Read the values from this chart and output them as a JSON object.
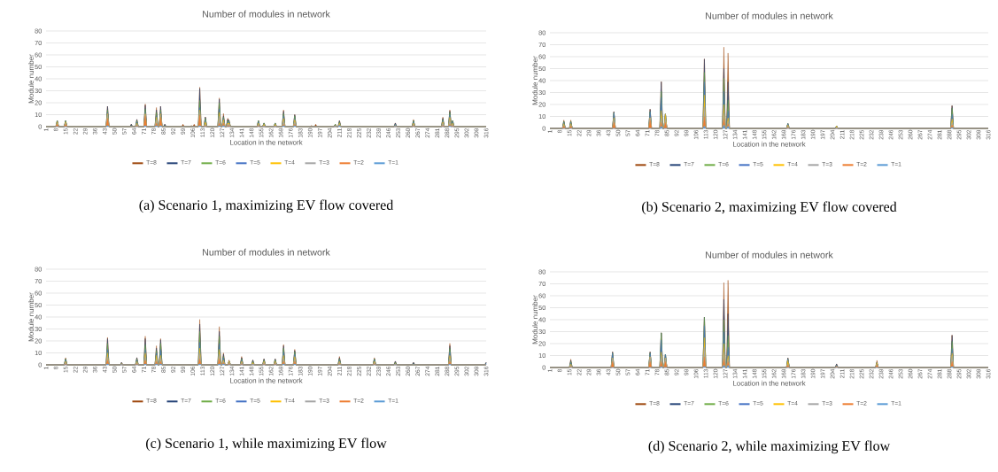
{
  "chart_data": [
    {
      "type": "area",
      "stacked": true,
      "title": "Number of modules in network",
      "xlabel": "Location in the network",
      "ylabel": "Module number",
      "xlim": [
        1,
        316
      ],
      "ylim": [
        0,
        80
      ],
      "xticks": [
        1,
        8,
        15,
        22,
        29,
        36,
        43,
        50,
        57,
        64,
        71,
        78,
        85,
        92,
        99,
        106,
        113,
        120,
        127,
        134,
        141,
        148,
        155,
        162,
        169,
        176,
        183,
        190,
        197,
        204,
        211,
        218,
        225,
        232,
        239,
        246,
        253,
        260,
        267,
        274,
        281,
        288,
        295,
        302,
        309,
        316
      ],
      "yticks": [
        0,
        10,
        20,
        30,
        40,
        50,
        60,
        70,
        80
      ],
      "grid": "y",
      "legend": "bottom",
      "annotations": [
        "(a) Scenario 1, maximizing EV flow covered"
      ],
      "x": [
        1,
        8,
        9,
        10,
        14,
        15,
        16,
        44,
        45,
        46,
        61,
        62,
        63,
        65,
        66,
        67,
        71,
        72,
        73,
        79,
        80,
        81,
        82,
        83,
        84,
        85,
        86,
        87,
        98,
        99,
        100,
        104,
        105,
        106,
        107,
        108,
        110,
        111,
        112,
        114,
        115,
        116,
        124,
        125,
        126,
        127,
        128,
        129,
        130,
        131,
        132,
        133,
        152,
        153,
        154,
        156,
        157,
        158,
        164,
        165,
        166,
        170,
        171,
        172,
        178,
        179,
        180,
        190,
        191,
        192,
        193,
        194,
        195,
        207,
        208,
        209,
        210,
        211,
        212,
        250,
        251,
        252,
        263,
        264,
        265,
        284,
        285,
        286,
        289,
        290,
        291,
        292,
        293,
        316
      ],
      "series": [
        {
          "name": "T=1",
          "color": "#5b9bd5",
          "values": [
            0,
            0,
            0,
            0,
            0,
            0,
            0,
            0,
            1,
            0,
            0,
            0,
            0,
            0,
            0,
            0,
            0,
            1,
            0,
            0,
            1,
            0,
            0,
            1,
            0,
            0,
            0,
            0,
            0,
            0,
            0,
            0,
            0,
            0,
            0,
            0,
            0,
            1,
            0,
            0,
            0,
            0,
            0,
            1,
            0,
            0,
            1,
            0,
            0,
            0,
            0,
            0,
            0,
            0,
            0,
            0,
            0,
            0,
            0,
            0,
            0,
            0,
            1,
            0,
            0,
            1,
            0,
            0,
            0,
            0,
            0,
            0,
            0,
            0,
            0,
            0,
            0,
            1,
            0,
            0,
            0,
            0,
            0,
            0,
            0,
            0,
            0,
            0,
            0,
            1,
            0,
            0,
            0,
            0
          ]
        },
        {
          "name": "T=2",
          "color": "#ed7d31",
          "values": [
            0,
            0,
            2,
            0,
            0,
            2,
            0,
            0,
            6,
            0,
            0,
            0,
            0,
            0,
            1,
            0,
            0,
            8,
            0,
            0,
            2,
            0,
            0,
            7,
            0,
            0,
            0,
            0,
            0,
            0,
            0,
            0,
            0,
            0,
            0,
            0,
            0,
            9,
            0,
            0,
            1,
            0,
            0,
            2,
            0,
            0,
            2,
            0,
            0,
            1,
            1,
            0,
            0,
            1,
            0,
            0,
            0,
            0,
            0,
            0,
            0,
            0,
            1,
            0,
            0,
            1,
            0,
            0,
            0,
            0,
            0,
            0,
            0,
            0,
            0,
            0,
            0,
            0,
            0,
            0,
            0,
            0,
            0,
            1,
            0,
            0,
            1,
            0,
            0,
            1,
            0,
            1,
            0,
            0
          ]
        },
        {
          "name": "T=3",
          "color": "#a5a5a5",
          "values": [
            0,
            0,
            1,
            0,
            0,
            1,
            0,
            0,
            3,
            0,
            0,
            0,
            0,
            0,
            1,
            0,
            0,
            1,
            0,
            0,
            3,
            0,
            0,
            2,
            0,
            0,
            0,
            0,
            0,
            0,
            0,
            0,
            0,
            0,
            0,
            0,
            0,
            3,
            0,
            0,
            1,
            0,
            0,
            6,
            0,
            0,
            1,
            0,
            0,
            1,
            1,
            0,
            0,
            1,
            0,
            0,
            1,
            0,
            0,
            1,
            0,
            0,
            3,
            0,
            0,
            2,
            0,
            0,
            0,
            0,
            0,
            0,
            0,
            0,
            1,
            0,
            0,
            1,
            0,
            0,
            1,
            0,
            0,
            1,
            0,
            0,
            2,
            0,
            0,
            4,
            0,
            1,
            0,
            0
          ]
        },
        {
          "name": "T=4",
          "color": "#ffc000",
          "values": [
            0,
            0,
            1,
            0,
            0,
            1,
            0,
            0,
            1,
            0,
            0,
            0,
            0,
            0,
            1,
            0,
            0,
            1,
            0,
            0,
            2,
            0,
            0,
            1,
            0,
            0,
            0,
            0,
            0,
            0,
            0,
            0,
            0,
            0,
            0,
            0,
            0,
            1,
            0,
            0,
            2,
            0,
            0,
            3,
            0,
            0,
            2,
            0,
            0,
            1,
            1,
            0,
            0,
            1,
            0,
            0,
            1,
            0,
            0,
            1,
            0,
            0,
            2,
            0,
            0,
            2,
            0,
            0,
            0,
            0,
            0,
            0,
            0,
            0,
            0,
            0,
            0,
            1,
            0,
            0,
            0,
            0,
            0,
            1,
            0,
            0,
            1,
            0,
            0,
            2,
            0,
            1,
            0,
            0
          ]
        },
        {
          "name": "T=5",
          "color": "#4472c4",
          "values": [
            0,
            0,
            0,
            0,
            0,
            0,
            0,
            0,
            1,
            0,
            0,
            0,
            0,
            0,
            1,
            0,
            0,
            1,
            0,
            0,
            1,
            0,
            0,
            1,
            0,
            0,
            0,
            0,
            0,
            0,
            0,
            0,
            0,
            0,
            0,
            0,
            0,
            2,
            0,
            0,
            1,
            0,
            0,
            3,
            0,
            0,
            1,
            0,
            0,
            1,
            0,
            0,
            0,
            1,
            0,
            0,
            0,
            0,
            0,
            0,
            0,
            0,
            2,
            0,
            0,
            1,
            0,
            0,
            0,
            0,
            0,
            0,
            0,
            0,
            0,
            0,
            0,
            0,
            0,
            0,
            1,
            0,
            0,
            1,
            0,
            0,
            1,
            0,
            0,
            2,
            0,
            1,
            0,
            0
          ]
        },
        {
          "name": "T=6",
          "color": "#70ad47",
          "values": [
            0,
            0,
            1,
            0,
            0,
            1,
            0,
            0,
            2,
            0,
            0,
            1,
            0,
            0,
            1,
            0,
            0,
            3,
            0,
            0,
            3,
            0,
            0,
            2,
            0,
            0,
            1,
            0,
            0,
            0,
            0,
            0,
            0,
            0,
            0,
            0,
            0,
            6,
            0,
            0,
            2,
            0,
            0,
            5,
            0,
            0,
            1,
            0,
            0,
            1,
            1,
            0,
            0,
            1,
            0,
            0,
            1,
            0,
            0,
            1,
            0,
            0,
            2,
            0,
            0,
            2,
            0,
            0,
            0,
            0,
            0,
            0,
            0,
            0,
            1,
            0,
            0,
            1,
            0,
            0,
            0,
            0,
            0,
            1,
            0,
            0,
            1,
            0,
            0,
            2,
            0,
            1,
            0,
            0
          ]
        },
        {
          "name": "T=7",
          "color": "#264478",
          "values": [
            0,
            0,
            0,
            0,
            0,
            0,
            0,
            0,
            3,
            0,
            0,
            1,
            0,
            0,
            1,
            0,
            0,
            3,
            0,
            0,
            2,
            0,
            0,
            3,
            0,
            0,
            1,
            0,
            0,
            0,
            0,
            0,
            0,
            0,
            0,
            0,
            0,
            10,
            0,
            0,
            1,
            0,
            0,
            3,
            0,
            0,
            1,
            0,
            0,
            1,
            1,
            0,
            0,
            0,
            0,
            0,
            0,
            0,
            0,
            0,
            0,
            0,
            2,
            0,
            0,
            1,
            0,
            0,
            0,
            0,
            0,
            0,
            0,
            0,
            0,
            0,
            0,
            1,
            0,
            0,
            1,
            0,
            0,
            0,
            0,
            0,
            1,
            0,
            0,
            1,
            0,
            0,
            0,
            0
          ]
        },
        {
          "name": "T=8",
          "color": "#9e480e",
          "values": [
            0,
            0,
            0,
            0,
            0,
            0,
            0,
            0,
            0,
            0,
            0,
            0,
            0,
            0,
            0,
            0,
            0,
            1,
            0,
            0,
            2,
            0,
            0,
            0,
            0,
            0,
            0,
            0,
            0,
            2,
            0,
            0,
            1,
            0,
            2,
            0,
            0,
            1,
            0,
            0,
            0,
            0,
            0,
            1,
            0,
            0,
            2,
            0,
            0,
            1,
            0,
            0,
            0,
            0,
            0,
            0,
            0,
            0,
            0,
            0,
            0,
            0,
            1,
            0,
            0,
            0,
            0,
            0,
            1,
            0,
            0,
            2,
            0,
            0,
            0,
            0,
            0,
            0,
            0,
            0,
            0,
            0,
            0,
            1,
            0,
            0,
            1,
            0,
            0,
            1,
            0,
            0,
            0,
            0
          ]
        }
      ]
    },
    {
      "type": "area",
      "stacked": true,
      "title": "Number of modules in network",
      "xlabel": "Location in the network",
      "ylabel": "Module number",
      "xlim": [
        1,
        316
      ],
      "ylim": [
        0,
        80
      ],
      "xticks": [
        1,
        8,
        15,
        22,
        29,
        36,
        43,
        50,
        57,
        64,
        71,
        78,
        85,
        92,
        99,
        106,
        113,
        120,
        127,
        134,
        141,
        148,
        155,
        162,
        169,
        176,
        183,
        190,
        197,
        204,
        211,
        218,
        225,
        232,
        239,
        246,
        253,
        260,
        267,
        274,
        281,
        288,
        295,
        302,
        309,
        316
      ],
      "yticks": [
        0,
        10,
        20,
        30,
        40,
        50,
        60,
        70,
        80
      ],
      "grid": "y",
      "legend": "bottom",
      "annotations": [
        "(b) Scenario 2, maximizing EV flow covered"
      ],
      "x": [
        1,
        10,
        11,
        12,
        15,
        16,
        17,
        46,
        47,
        48,
        72,
        73,
        74,
        80,
        81,
        82,
        83,
        84,
        85,
        111,
        112,
        113,
        125,
        126,
        127,
        128,
        129,
        130,
        171,
        172,
        173,
        206,
        207,
        208,
        289,
        290,
        291,
        316
      ],
      "series": [
        {
          "name": "T=1",
          "color": "#5b9bd5",
          "values": [
            0,
            0,
            0,
            0,
            0,
            0,
            0,
            0,
            0,
            0,
            0,
            0,
            0,
            0,
            2,
            0,
            0,
            0,
            0,
            0,
            2,
            0,
            0,
            3,
            0,
            0,
            2,
            0,
            0,
            0,
            0,
            0,
            0,
            0,
            0,
            1,
            0,
            0
          ]
        },
        {
          "name": "T=2",
          "color": "#ed7d31",
          "values": [
            0,
            0,
            2,
            0,
            0,
            2,
            0,
            0,
            5,
            0,
            0,
            7,
            0,
            0,
            3,
            0,
            0,
            5,
            0,
            0,
            8,
            0,
            0,
            5,
            0,
            0,
            2,
            0,
            0,
            1,
            0,
            0,
            0,
            0,
            0,
            2,
            0,
            0
          ]
        },
        {
          "name": "T=3",
          "color": "#a5a5a5",
          "values": [
            0,
            0,
            1,
            0,
            0,
            1,
            0,
            0,
            3,
            0,
            0,
            2,
            0,
            0,
            4,
            0,
            0,
            3,
            0,
            0,
            8,
            0,
            0,
            5,
            0,
            0,
            2,
            0,
            0,
            1,
            0,
            0,
            1,
            0,
            0,
            2,
            0,
            0
          ]
        },
        {
          "name": "T=4",
          "color": "#ffc000",
          "values": [
            0,
            0,
            1,
            0,
            0,
            1,
            0,
            0,
            1,
            0,
            0,
            0,
            0,
            0,
            6,
            0,
            0,
            4,
            0,
            0,
            10,
            0,
            0,
            7,
            0,
            0,
            3,
            0,
            0,
            1,
            0,
            0,
            1,
            0,
            0,
            3,
            0,
            0
          ]
        },
        {
          "name": "T=5",
          "color": "#4472c4",
          "values": [
            0,
            0,
            1,
            0,
            0,
            1,
            0,
            0,
            4,
            0,
            0,
            5,
            0,
            0,
            11,
            0,
            0,
            0,
            0,
            0,
            11,
            0,
            0,
            11,
            0,
            0,
            6,
            0,
            0,
            1,
            0,
            0,
            0,
            0,
            0,
            4,
            0,
            0
          ]
        },
        {
          "name": "T=6",
          "color": "#70ad47",
          "values": [
            0,
            0,
            1,
            0,
            0,
            1,
            0,
            0,
            0,
            0,
            0,
            0,
            0,
            0,
            5,
            0,
            0,
            0,
            0,
            0,
            8,
            0,
            0,
            11,
            0,
            0,
            9,
            0,
            0,
            0,
            0,
            0,
            0,
            0,
            0,
            5,
            0,
            0
          ]
        },
        {
          "name": "T=7",
          "color": "#264478",
          "values": [
            0,
            0,
            0,
            0,
            0,
            0,
            0,
            0,
            1,
            0,
            0,
            2,
            0,
            0,
            8,
            0,
            0,
            0,
            0,
            0,
            11,
            0,
            0,
            8,
            0,
            0,
            15,
            0,
            0,
            0,
            0,
            0,
            0,
            0,
            0,
            2,
            0,
            0
          ]
        },
        {
          "name": "T=8",
          "color": "#9e480e",
          "values": [
            0,
            0,
            1,
            0,
            0,
            1,
            0,
            0,
            0,
            0,
            0,
            0,
            0,
            0,
            0,
            0,
            0,
            0,
            0,
            0,
            0,
            0,
            0,
            18,
            0,
            0,
            24,
            0,
            0,
            0,
            0,
            0,
            0,
            0,
            0,
            0,
            0,
            0
          ]
        }
      ]
    },
    {
      "type": "area",
      "stacked": true,
      "title": "Number of modules in network",
      "xlabel": "Location in the network",
      "ylabel": "Module number",
      "xlim": [
        1,
        316
      ],
      "ylim": [
        0,
        80
      ],
      "xticks": [
        1,
        8,
        15,
        22,
        29,
        36,
        43,
        50,
        57,
        64,
        71,
        78,
        85,
        92,
        99,
        106,
        113,
        120,
        127,
        134,
        141,
        148,
        155,
        162,
        169,
        176,
        183,
        190,
        197,
        204,
        211,
        218,
        225,
        232,
        239,
        246,
        253,
        260,
        267,
        274,
        281,
        288,
        295,
        302,
        309,
        316
      ],
      "yticks": [
        0,
        10,
        20,
        30,
        40,
        50,
        60,
        70,
        80
      ],
      "grid": "y",
      "legend": "bottom",
      "annotations": [
        "(c) Scenario 1, while maximizing EV flow"
      ],
      "x": [
        1,
        14,
        15,
        16,
        44,
        45,
        46,
        54,
        55,
        56,
        65,
        66,
        67,
        71,
        72,
        73,
        79,
        80,
        81,
        82,
        83,
        84,
        110,
        111,
        112,
        124,
        125,
        126,
        127,
        128,
        129,
        131,
        132,
        133,
        140,
        141,
        142,
        148,
        149,
        150,
        156,
        157,
        158,
        164,
        165,
        166,
        170,
        171,
        172,
        178,
        179,
        180,
        210,
        211,
        212,
        235,
        236,
        237,
        250,
        251,
        252,
        263,
        264,
        265,
        289,
        290,
        291,
        315,
        316
      ],
      "series": [
        {
          "name": "T=1",
          "color": "#5b9bd5",
          "values": [
            0,
            0,
            0,
            0,
            0,
            1,
            0,
            0,
            0,
            0,
            0,
            0,
            0,
            0,
            1,
            0,
            0,
            1,
            0,
            0,
            1,
            0,
            0,
            1,
            0,
            0,
            1,
            0,
            0,
            1,
            0,
            0,
            0,
            0,
            0,
            0,
            0,
            0,
            0,
            0,
            0,
            0,
            0,
            0,
            0,
            0,
            0,
            1,
            0,
            0,
            1,
            0,
            0,
            0,
            0,
            0,
            0,
            0,
            0,
            0,
            0,
            0,
            0,
            0,
            0,
            1,
            0,
            0,
            0
          ]
        },
        {
          "name": "T=2",
          "color": "#ed7d31",
          "values": [
            0,
            0,
            1,
            0,
            0,
            3,
            0,
            0,
            0,
            0,
            0,
            1,
            0,
            0,
            3,
            0,
            0,
            2,
            0,
            0,
            2,
            0,
            0,
            4,
            0,
            0,
            4,
            0,
            0,
            1,
            0,
            0,
            1,
            0,
            0,
            1,
            0,
            0,
            0,
            0,
            0,
            1,
            0,
            0,
            1,
            0,
            0,
            2,
            0,
            0,
            2,
            0,
            0,
            1,
            0,
            0,
            1,
            0,
            0,
            0,
            0,
            0,
            0,
            0,
            0,
            2,
            0,
            0,
            0
          ]
        },
        {
          "name": "T=3",
          "color": "#a5a5a5",
          "values": [
            0,
            0,
            1,
            0,
            0,
            3,
            0,
            0,
            1,
            0,
            0,
            1,
            0,
            0,
            3,
            0,
            0,
            2,
            0,
            0,
            3,
            0,
            0,
            5,
            0,
            0,
            4,
            0,
            0,
            1,
            0,
            0,
            1,
            0,
            0,
            1,
            0,
            0,
            1,
            0,
            0,
            1,
            0,
            0,
            1,
            0,
            0,
            3,
            0,
            0,
            2,
            0,
            0,
            1,
            0,
            0,
            1,
            0,
            0,
            1,
            0,
            0,
            0,
            0,
            0,
            3,
            0,
            0,
            0
          ]
        },
        {
          "name": "T=4",
          "color": "#ffc000",
          "values": [
            0,
            0,
            1,
            0,
            0,
            3,
            0,
            0,
            0,
            0,
            0,
            1,
            0,
            0,
            3,
            0,
            0,
            3,
            0,
            0,
            2,
            0,
            0,
            4,
            0,
            0,
            4,
            0,
            0,
            1,
            0,
            0,
            1,
            0,
            0,
            1,
            0,
            0,
            1,
            0,
            0,
            1,
            0,
            0,
            1,
            0,
            0,
            2,
            0,
            0,
            2,
            0,
            0,
            1,
            0,
            0,
            1,
            0,
            0,
            0,
            0,
            0,
            0,
            0,
            0,
            2,
            0,
            0,
            0
          ]
        },
        {
          "name": "T=5",
          "color": "#4472c4",
          "values": [
            0,
            0,
            1,
            0,
            0,
            3,
            0,
            0,
            0,
            0,
            0,
            1,
            0,
            0,
            3,
            0,
            0,
            2,
            0,
            0,
            5,
            0,
            0,
            5,
            0,
            0,
            5,
            0,
            0,
            2,
            0,
            0,
            0,
            0,
            0,
            1,
            0,
            0,
            0,
            0,
            0,
            0,
            0,
            0,
            0,
            0,
            0,
            3,
            0,
            0,
            2,
            0,
            0,
            1,
            0,
            0,
            1,
            0,
            0,
            0,
            0,
            0,
            0,
            0,
            0,
            3,
            0,
            0,
            1
          ]
        },
        {
          "name": "T=6",
          "color": "#70ad47",
          "values": [
            0,
            0,
            1,
            0,
            0,
            5,
            0,
            0,
            0,
            0,
            0,
            1,
            0,
            0,
            4,
            0,
            0,
            2,
            0,
            0,
            5,
            0,
            0,
            9,
            0,
            0,
            6,
            0,
            0,
            1,
            0,
            0,
            0,
            0,
            0,
            1,
            0,
            0,
            1,
            0,
            0,
            1,
            0,
            0,
            1,
            0,
            0,
            3,
            0,
            0,
            2,
            0,
            0,
            1,
            0,
            0,
            1,
            0,
            0,
            1,
            0,
            0,
            1,
            0,
            0,
            3,
            0,
            0,
            0
          ]
        },
        {
          "name": "T=7",
          "color": "#264478",
          "values": [
            0,
            0,
            0,
            0,
            0,
            4,
            0,
            0,
            1,
            0,
            0,
            1,
            0,
            0,
            5,
            0,
            0,
            2,
            0,
            0,
            3,
            0,
            0,
            6,
            0,
            0,
            4,
            0,
            0,
            2,
            0,
            0,
            0,
            0,
            0,
            1,
            0,
            0,
            1,
            0,
            0,
            1,
            0,
            0,
            1,
            0,
            0,
            2,
            0,
            0,
            1,
            0,
            0,
            1,
            0,
            0,
            0,
            0,
            0,
            1,
            0,
            0,
            1,
            0,
            0,
            2,
            0,
            0,
            1
          ]
        },
        {
          "name": "T=8",
          "color": "#9e480e",
          "values": [
            0,
            0,
            1,
            0,
            0,
            1,
            0,
            0,
            0,
            0,
            0,
            0,
            0,
            0,
            2,
            0,
            0,
            2,
            0,
            0,
            1,
            0,
            0,
            4,
            0,
            0,
            4,
            0,
            0,
            1,
            0,
            0,
            1,
            0,
            0,
            1,
            0,
            0,
            0,
            0,
            0,
            0,
            0,
            0,
            0,
            0,
            0,
            1,
            0,
            0,
            1,
            0,
            0,
            1,
            0,
            0,
            1,
            0,
            0,
            0,
            0,
            0,
            0,
            0,
            0,
            2,
            0,
            0,
            0
          ]
        }
      ]
    },
    {
      "type": "area",
      "stacked": true,
      "title": "Number of modules in network",
      "xlabel": "Location in the network",
      "ylabel": "Module number",
      "xlim": [
        1,
        316
      ],
      "ylim": [
        0,
        80
      ],
      "xticks": [
        1,
        8,
        15,
        22,
        29,
        36,
        43,
        50,
        57,
        64,
        71,
        78,
        85,
        92,
        99,
        106,
        113,
        120,
        127,
        134,
        141,
        148,
        155,
        162,
        169,
        176,
        183,
        190,
        197,
        204,
        211,
        218,
        225,
        232,
        239,
        246,
        253,
        260,
        267,
        274,
        281,
        288,
        295,
        302,
        309,
        316
      ],
      "yticks": [
        0,
        10,
        20,
        30,
        40,
        50,
        60,
        70,
        80
      ],
      "grid": "y",
      "legend": "bottom",
      "annotations": [
        "(d) Scenario 2, while maximizing EV flow"
      ],
      "x": [
        1,
        15,
        16,
        17,
        45,
        46,
        47,
        72,
        73,
        74,
        80,
        81,
        82,
        83,
        84,
        85,
        111,
        112,
        113,
        125,
        126,
        127,
        128,
        129,
        130,
        171,
        172,
        173,
        206,
        207,
        208,
        235,
        236,
        237,
        289,
        290,
        291,
        316
      ],
      "series": [
        {
          "name": "T=1",
          "color": "#5b9bd5",
          "values": [
            0,
            0,
            0,
            0,
            0,
            0,
            0,
            0,
            0,
            0,
            0,
            1,
            0,
            0,
            0,
            0,
            0,
            1,
            0,
            0,
            2,
            0,
            0,
            2,
            0,
            0,
            0,
            0,
            0,
            0,
            0,
            0,
            0,
            0,
            0,
            1,
            0,
            0
          ]
        },
        {
          "name": "T=2",
          "color": "#ed7d31",
          "values": [
            0,
            0,
            1,
            0,
            0,
            5,
            0,
            0,
            5,
            0,
            0,
            4,
            0,
            0,
            5,
            0,
            0,
            8,
            0,
            0,
            5,
            0,
            0,
            3,
            0,
            0,
            2,
            0,
            0,
            1,
            0,
            0,
            2,
            0,
            0,
            4,
            0,
            0
          ]
        },
        {
          "name": "T=3",
          "color": "#a5a5a5",
          "values": [
            0,
            0,
            1,
            0,
            0,
            3,
            0,
            0,
            4,
            0,
            0,
            5,
            0,
            0,
            3,
            0,
            0,
            8,
            0,
            0,
            6,
            0,
            0,
            2,
            0,
            0,
            1,
            0,
            0,
            0,
            0,
            0,
            1,
            0,
            0,
            5,
            0,
            0
          ]
        },
        {
          "name": "T=4",
          "color": "#ffc000",
          "values": [
            0,
            0,
            1,
            0,
            0,
            0,
            0,
            0,
            0,
            0,
            0,
            3,
            0,
            0,
            0,
            0,
            0,
            8,
            0,
            0,
            7,
            0,
            0,
            3,
            0,
            0,
            3,
            0,
            0,
            0,
            0,
            0,
            1,
            0,
            0,
            2,
            0,
            0
          ]
        },
        {
          "name": "T=5",
          "color": "#4472c4",
          "values": [
            0,
            0,
            1,
            0,
            0,
            4,
            0,
            0,
            3,
            0,
            0,
            10,
            0,
            0,
            3,
            0,
            0,
            10,
            0,
            0,
            10,
            0,
            0,
            7,
            0,
            0,
            1,
            0,
            0,
            1,
            0,
            0,
            0,
            0,
            0,
            4,
            0,
            0
          ]
        },
        {
          "name": "T=6",
          "color": "#70ad47",
          "values": [
            0,
            0,
            1,
            0,
            0,
            0,
            0,
            0,
            0,
            0,
            0,
            6,
            0,
            0,
            0,
            0,
            0,
            7,
            0,
            0,
            10,
            0,
            0,
            10,
            0,
            0,
            0,
            0,
            0,
            0,
            0,
            0,
            0,
            0,
            0,
            6,
            0,
            0
          ]
        },
        {
          "name": "T=7",
          "color": "#264478",
          "values": [
            0,
            0,
            1,
            0,
            0,
            1,
            0,
            0,
            1,
            0,
            0,
            0,
            0,
            0,
            0,
            0,
            0,
            0,
            0,
            0,
            17,
            0,
            0,
            18,
            0,
            0,
            1,
            0,
            0,
            1,
            0,
            0,
            0,
            0,
            0,
            5,
            0,
            0
          ]
        },
        {
          "name": "T=8",
          "color": "#9e480e",
          "values": [
            0,
            0,
            1,
            0,
            0,
            0,
            0,
            0,
            0,
            0,
            0,
            0,
            0,
            0,
            0,
            0,
            0,
            0,
            0,
            0,
            14,
            0,
            0,
            28,
            0,
            0,
            0,
            0,
            0,
            0,
            0,
            0,
            2,
            0,
            0,
            0,
            0,
            0
          ]
        }
      ]
    }
  ]
}
